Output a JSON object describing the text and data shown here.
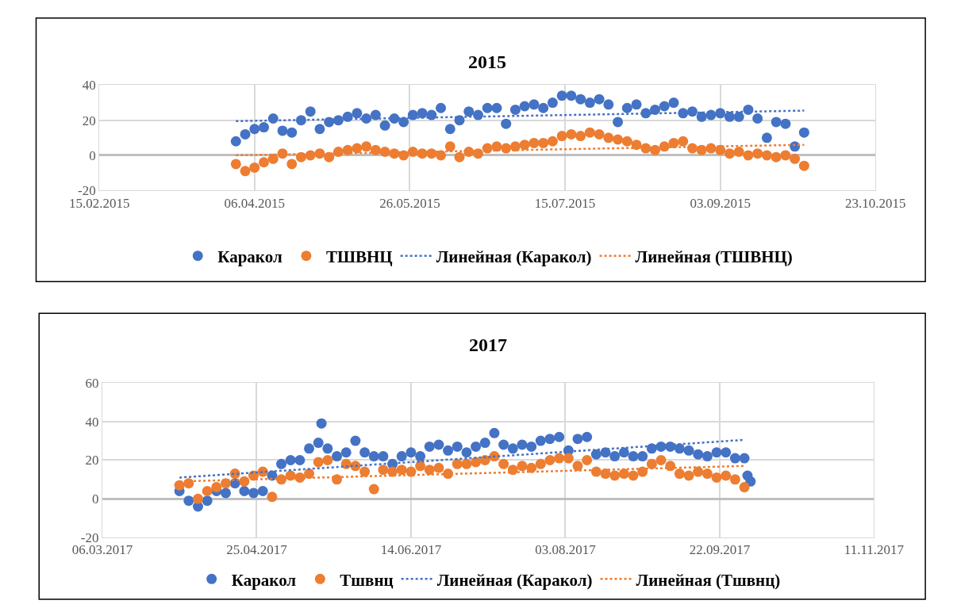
{
  "chart_data": [
    {
      "type": "scatter",
      "title": "2015",
      "marker": "circle",
      "grid": true,
      "legend": "bottom",
      "xlim": [
        "2015-02-15",
        "2015-10-23"
      ],
      "xticks": [
        {
          "value": "2015-02-15",
          "label": "15.02.2015"
        },
        {
          "value": "2015-04-06",
          "label": "06.04.2015"
        },
        {
          "value": "2015-05-26",
          "label": "26.05.2015"
        },
        {
          "value": "2015-07-15",
          "label": "15.07.2015"
        },
        {
          "value": "2015-09-03",
          "label": "03.09.2015"
        },
        {
          "value": "2015-10-23",
          "label": "23.10.2015"
        }
      ],
      "ylim": [
        -20,
        40
      ],
      "yticks": [
        -20,
        0,
        20,
        40
      ],
      "x": [
        "2015-03-31",
        "2015-04-03",
        "2015-04-06",
        "2015-04-09",
        "2015-04-12",
        "2015-04-15",
        "2015-04-18",
        "2015-04-21",
        "2015-04-24",
        "2015-04-27",
        "2015-04-30",
        "2015-05-03",
        "2015-05-06",
        "2015-05-09",
        "2015-05-12",
        "2015-05-15",
        "2015-05-18",
        "2015-05-21",
        "2015-05-24",
        "2015-05-27",
        "2015-05-30",
        "2015-06-02",
        "2015-06-05",
        "2015-06-08",
        "2015-06-11",
        "2015-06-14",
        "2015-06-17",
        "2015-06-20",
        "2015-06-23",
        "2015-06-26",
        "2015-06-29",
        "2015-07-02",
        "2015-07-05",
        "2015-07-08",
        "2015-07-11",
        "2015-07-14",
        "2015-07-17",
        "2015-07-20",
        "2015-07-23",
        "2015-07-26",
        "2015-07-29",
        "2015-08-01",
        "2015-08-04",
        "2015-08-07",
        "2015-08-10",
        "2015-08-13",
        "2015-08-16",
        "2015-08-19",
        "2015-08-22",
        "2015-08-25",
        "2015-08-28",
        "2015-08-31",
        "2015-09-03",
        "2015-09-06",
        "2015-09-09",
        "2015-09-12",
        "2015-09-15",
        "2015-09-18",
        "2015-09-21",
        "2015-09-24",
        "2015-09-27",
        "2015-09-30"
      ],
      "series": [
        {
          "name": "Каракол",
          "color": "#4472c4",
          "values": [
            8,
            12,
            15,
            16,
            21,
            14,
            13,
            20,
            25,
            15,
            19,
            20,
            22,
            24,
            21,
            23,
            17,
            21,
            19,
            23,
            24,
            23,
            27,
            15,
            20,
            25,
            23,
            27,
            27,
            18,
            26,
            28,
            29,
            27,
            30,
            34,
            34,
            32,
            30,
            32,
            29,
            19,
            27,
            29,
            24,
            26,
            28,
            30,
            24,
            25,
            22,
            23,
            24,
            22,
            22,
            26,
            21,
            10,
            19,
            18,
            5,
            13
          ]
        },
        {
          "name": "ТШВНЦ",
          "color": "#ed7d31",
          "values": [
            -5,
            -9,
            -7,
            -4,
            -2,
            1,
            -5,
            -1,
            0,
            1,
            -1,
            2,
            3,
            4,
            5,
            3,
            2,
            1,
            0,
            2,
            1,
            1,
            0,
            5,
            -1,
            2,
            1,
            4,
            5,
            4,
            5,
            6,
            7,
            7,
            8,
            11,
            12,
            11,
            13,
            12,
            10,
            9,
            8,
            6,
            4,
            3,
            5,
            7,
            8,
            4,
            3,
            4,
            3,
            1,
            2,
            0,
            1,
            0,
            -1,
            0,
            -2,
            -6
          ]
        },
        {
          "name": "Линейная (Каракол)",
          "type": "line",
          "line_style": "dotted",
          "marker": "none",
          "color": "#4472c4",
          "x": [
            "2015-03-31",
            "2015-09-30"
          ],
          "values": [
            19.5,
            25.5
          ]
        },
        {
          "name": "Линейная (ТШВНЦ)",
          "type": "line",
          "line_style": "dotted",
          "marker": "none",
          "color": "#ed7d31",
          "x": [
            "2015-03-31",
            "2015-09-30"
          ],
          "values": [
            0,
            6
          ]
        }
      ]
    },
    {
      "type": "scatter",
      "title": "2017",
      "marker": "circle",
      "grid": true,
      "legend": "bottom",
      "xlim": [
        "2017-03-06",
        "2017-11-11"
      ],
      "xticks": [
        {
          "value": "2017-03-06",
          "label": "06.03.2017"
        },
        {
          "value": "2017-04-25",
          "label": "25.04.2017"
        },
        {
          "value": "2017-06-14",
          "label": "14.06.2017"
        },
        {
          "value": "2017-08-03",
          "label": "03.08.2017"
        },
        {
          "value": "2017-09-22",
          "label": "22.09.2017"
        },
        {
          "value": "2017-11-11",
          "label": "11.11.2017"
        }
      ],
      "ylim": [
        -20,
        60
      ],
      "yticks": [
        -20,
        0,
        20,
        40,
        60
      ],
      "series": [
        {
          "name": "Каракол",
          "color": "#4472c4",
          "x": [
            "2017-03-31",
            "2017-04-03",
            "2017-04-06",
            "2017-04-09",
            "2017-04-12",
            "2017-04-15",
            "2017-04-18",
            "2017-04-21",
            "2017-04-24",
            "2017-04-27",
            "2017-04-30",
            "2017-05-03",
            "2017-05-06",
            "2017-05-09",
            "2017-05-12",
            "2017-05-15",
            "2017-05-16",
            "2017-05-18",
            "2017-05-21",
            "2017-05-24",
            "2017-05-27",
            "2017-05-30",
            "2017-06-02",
            "2017-06-05",
            "2017-06-08",
            "2017-06-11",
            "2017-06-14",
            "2017-06-17",
            "2017-06-20",
            "2017-06-23",
            "2017-06-26",
            "2017-06-29",
            "2017-07-02",
            "2017-07-05",
            "2017-07-08",
            "2017-07-11",
            "2017-07-14",
            "2017-07-17",
            "2017-07-20",
            "2017-07-23",
            "2017-07-26",
            "2017-07-29",
            "2017-08-01",
            "2017-08-04",
            "2017-08-07",
            "2017-08-10",
            "2017-08-13",
            "2017-08-16",
            "2017-08-19",
            "2017-08-22",
            "2017-08-25",
            "2017-08-28",
            "2017-08-31",
            "2017-09-03",
            "2017-09-06",
            "2017-09-09",
            "2017-09-12",
            "2017-09-15",
            "2017-09-18",
            "2017-09-21",
            "2017-09-24",
            "2017-09-27",
            "2017-09-30",
            "2017-10-01",
            "2017-10-02"
          ],
          "values": [
            4,
            -1,
            -4,
            -1,
            4,
            3,
            8,
            4,
            3,
            4,
            12,
            18,
            20,
            20,
            26,
            29,
            39,
            26,
            22,
            24,
            30,
            24,
            22,
            22,
            18,
            22,
            24,
            22,
            27,
            28,
            25,
            27,
            24,
            27,
            29,
            34,
            28,
            26,
            28,
            27,
            30,
            31,
            32,
            25,
            31,
            32,
            23,
            24,
            22,
            24,
            22,
            22,
            26,
            27,
            27,
            26,
            25,
            23,
            22,
            24,
            24,
            21,
            21,
            12,
            9
          ]
        },
        {
          "name": "Тшвнц",
          "color": "#ed7d31",
          "x": [
            "2017-03-31",
            "2017-04-03",
            "2017-04-06",
            "2017-04-09",
            "2017-04-12",
            "2017-04-15",
            "2017-04-18",
            "2017-04-21",
            "2017-04-24",
            "2017-04-27",
            "2017-04-30",
            "2017-05-03",
            "2017-05-06",
            "2017-05-09",
            "2017-05-12",
            "2017-05-15",
            "2017-05-18",
            "2017-05-21",
            "2017-05-24",
            "2017-05-27",
            "2017-05-30",
            "2017-06-02",
            "2017-06-05",
            "2017-06-08",
            "2017-06-11",
            "2017-06-14",
            "2017-06-17",
            "2017-06-20",
            "2017-06-23",
            "2017-06-26",
            "2017-06-29",
            "2017-07-02",
            "2017-07-05",
            "2017-07-08",
            "2017-07-11",
            "2017-07-14",
            "2017-07-17",
            "2017-07-20",
            "2017-07-23",
            "2017-07-26",
            "2017-07-29",
            "2017-08-01",
            "2017-08-04",
            "2017-08-07",
            "2017-08-10",
            "2017-08-13",
            "2017-08-16",
            "2017-08-19",
            "2017-08-22",
            "2017-08-25",
            "2017-08-28",
            "2017-08-31",
            "2017-09-03",
            "2017-09-06",
            "2017-09-09",
            "2017-09-12",
            "2017-09-15",
            "2017-09-18",
            "2017-09-21",
            "2017-09-24",
            "2017-09-27",
            "2017-09-30"
          ],
          "values": [
            7,
            8,
            0,
            4,
            6,
            8,
            13,
            9,
            12,
            14,
            1,
            10,
            12,
            11,
            13,
            19,
            20,
            10,
            18,
            17,
            14,
            5,
            15,
            14,
            15,
            14,
            17,
            15,
            16,
            13,
            18,
            18,
            19,
            20,
            22,
            18,
            15,
            17,
            16,
            18,
            20,
            21,
            21,
            17,
            20,
            14,
            13,
            12,
            13,
            12,
            14,
            18,
            20,
            17,
            13,
            12,
            14,
            13,
            11,
            12,
            10,
            6
          ]
        },
        {
          "name": "Линейная (Каракол)",
          "type": "line",
          "line_style": "dotted",
          "marker": "none",
          "color": "#4472c4",
          "x": [
            "2017-03-31",
            "2017-09-30"
          ],
          "values": [
            11,
            30.5
          ]
        },
        {
          "name": "Линейная (Тшвнц)",
          "type": "line",
          "line_style": "dotted",
          "marker": "none",
          "color": "#ed7d31",
          "x": [
            "2017-03-31",
            "2017-09-30"
          ],
          "values": [
            9,
            17
          ]
        }
      ]
    }
  ]
}
